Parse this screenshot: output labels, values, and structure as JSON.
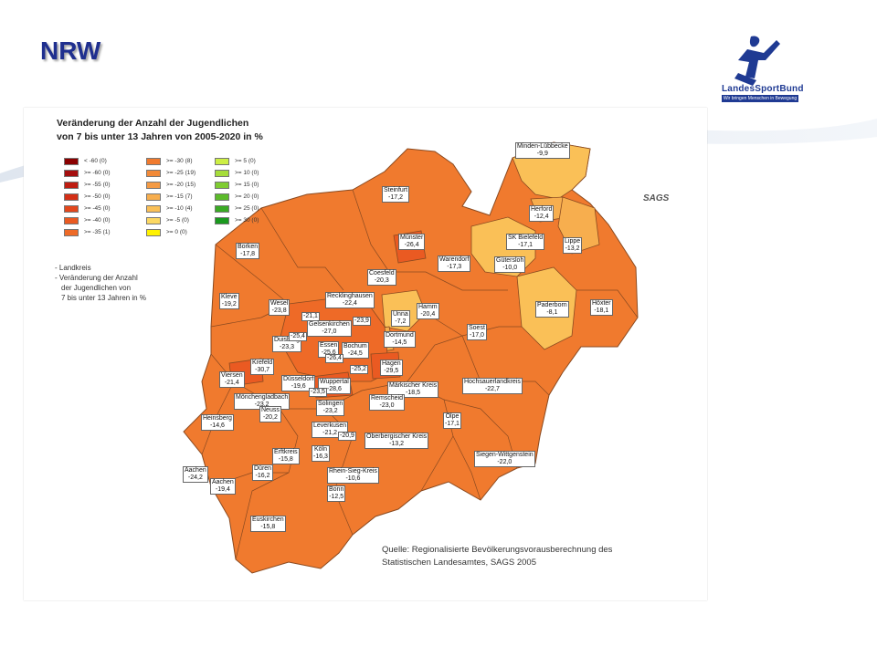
{
  "slide": {
    "title": "NRW",
    "logo_text": "LandesSportBund",
    "logo_tagline": "Wir bringen Menschen in Bewegung"
  },
  "figure": {
    "title_line1": "Veränderung der Anzahl der Jugendlichen",
    "title_line2": "von 7 bis unter 13 Jahren von 2005-2020 in %",
    "sags_mark": "SAGS",
    "source_line1": "Quelle: Regionalisierte Bevölkerungsvorausberechnung des",
    "source_line2": "Statistischen Landesamtes, SAGS 2005",
    "notes": [
      "- Landkreis",
      "- Veränderung der Anzahl",
      "  der Jugendlichen von",
      "  7 bis unter 13 Jahren in %"
    ]
  },
  "legend": [
    {
      "label": "<  -60 (0)",
      "color": "#8b0000"
    },
    {
      "label": ">= -60 (0)",
      "color": "#a50f0f"
    },
    {
      "label": ">= -55 (0)",
      "color": "#bf1d12"
    },
    {
      "label": ">= -50 (0)",
      "color": "#d42f16"
    },
    {
      "label": ">= -45 (0)",
      "color": "#e3471c"
    },
    {
      "label": ">= -40 (0)",
      "color": "#ea5a22"
    },
    {
      "label": ">= -35 (1)",
      "color": "#ee6a27"
    },
    {
      "label": ">= -30 (8)",
      "color": "#f07a2e"
    },
    {
      "label": ">= -25 (19)",
      "color": "#f28a38"
    },
    {
      "label": ">= -20 (15)",
      "color": "#f49a44"
    },
    {
      "label": ">= -15 (7)",
      "color": "#f7ae4e"
    },
    {
      "label": ">= -10 (4)",
      "color": "#fac057"
    },
    {
      "label": ">= -5 (0)",
      "color": "#fcd862"
    },
    {
      "label": ">= 0 (0)",
      "color": "#fff200"
    },
    {
      "label": ">= 5 (0)",
      "color": "#ccee44"
    },
    {
      "label": ">= 10 (0)",
      "color": "#a6dd3a"
    },
    {
      "label": ">= 15 (0)",
      "color": "#7fcc32"
    },
    {
      "label": ">= 20 (0)",
      "color": "#5cbb2a"
    },
    {
      "label": ">= 25 (0)",
      "color": "#3aaa24"
    },
    {
      "label": ">= 30 (0)",
      "color": "#1a991e"
    }
  ],
  "districts": [
    {
      "name": "Minden-Lübbecke",
      "value": "-9,9"
    },
    {
      "name": "Steinfurt",
      "value": "-17,2"
    },
    {
      "name": "Herford",
      "value": "-12,4"
    },
    {
      "name": "SK Bielefeld",
      "value": "-17,1"
    },
    {
      "name": "Lippe",
      "value": "-13,2"
    },
    {
      "name": "Gütersloh",
      "value": "-10,0"
    },
    {
      "name": "Borken",
      "value": "-17,8"
    },
    {
      "name": "Münster",
      "value": "-26,4"
    },
    {
      "name": "Warendorf",
      "value": "-17,3"
    },
    {
      "name": "Coesfeld",
      "value": "-20,3"
    },
    {
      "name": "Paderborn",
      "value": "-8,1"
    },
    {
      "name": "Höxter",
      "value": "-18,1"
    },
    {
      "name": "Kleve",
      "value": "-19,2"
    },
    {
      "name": "Wesel",
      "value": "-23,8"
    },
    {
      "name": "Recklinghausen",
      "value": "-22,4"
    },
    {
      "name": "Hamm",
      "value": "-20,4"
    },
    {
      "name": "Unna",
      "value": "-7,2"
    },
    {
      "name": "Soest",
      "value": "-17,0"
    },
    {
      "name": "",
      "value": "-21,1"
    },
    {
      "name": "Gelsenkirchen",
      "value": "-27,0"
    },
    {
      "name": "",
      "value": "-23,9"
    },
    {
      "name": "Dortmund",
      "value": "-14,5"
    },
    {
      "name": "Duisburg",
      "value": "-23,3"
    },
    {
      "name": "",
      "value": "-25,4"
    },
    {
      "name": "Essen",
      "value": "-25,6"
    },
    {
      "name": "Bochum",
      "value": "-24,5"
    },
    {
      "name": "",
      "value": "-26,4"
    },
    {
      "name": "Hagen",
      "value": "-29,5"
    },
    {
      "name": "Krefeld",
      "value": "-30,7"
    },
    {
      "name": "",
      "value": "-25,2"
    },
    {
      "name": "Viersen",
      "value": "-21,4"
    },
    {
      "name": "Düsseldorf",
      "value": "-19,6"
    },
    {
      "name": "Wuppertal",
      "value": "-28,6"
    },
    {
      "name": "Märkischer Kreis",
      "value": "-18,5"
    },
    {
      "name": "Hochsauerlandkreis",
      "value": "-22,7"
    },
    {
      "name": "Mönchengladbach",
      "value": "-23,2"
    },
    {
      "name": "",
      "value": "-23,5"
    },
    {
      "name": "Remscheid",
      "value": "-23,0"
    },
    {
      "name": "Neuss",
      "value": "-20,2"
    },
    {
      "name": "Solingen",
      "value": "-23,2"
    },
    {
      "name": "Heinsberg",
      "value": "-14,6"
    },
    {
      "name": "Olpe",
      "value": "-17,1"
    },
    {
      "name": "Leverkusen",
      "value": "-21,2"
    },
    {
      "name": "",
      "value": "-20,9"
    },
    {
      "name": "Oberbergischer Kreis",
      "value": "-13,2"
    },
    {
      "name": "Erftkreis",
      "value": "-15,8"
    },
    {
      "name": "Köln",
      "value": "-16,3"
    },
    {
      "name": "Siegen-Wittgenstein",
      "value": "-22,0"
    },
    {
      "name": "Aachen",
      "value": "-24,2"
    },
    {
      "name": "Düren",
      "value": "-16,2"
    },
    {
      "name": "Rhein-Sieg-Kreis",
      "value": "-10,6"
    },
    {
      "name": "Aachen",
      "value": "-19,4"
    },
    {
      "name": "Bonn",
      "value": "-12,5"
    },
    {
      "name": "Euskirchen",
      "value": "-15,8"
    }
  ]
}
